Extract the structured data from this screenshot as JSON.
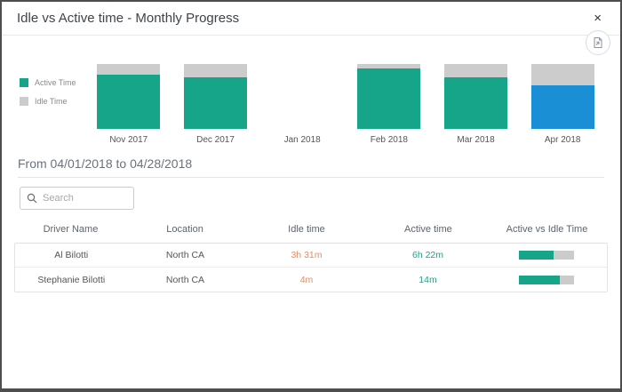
{
  "modal": {
    "title": "Idle vs Active time - Monthly Progress",
    "close_label": "×"
  },
  "toolbar": {
    "export_icon": "export-document-icon"
  },
  "colors": {
    "active_teal": "#17a589",
    "idle_gray": "#cccccc",
    "highlight_blue": "#1b8fd6",
    "idle_text_orange": "#e88b5f"
  },
  "legend": {
    "items": [
      {
        "label": "Active Time",
        "color": "#17a589"
      },
      {
        "label": "Idle Time",
        "color": "#cccccc"
      }
    ]
  },
  "chart_data": {
    "type": "bar",
    "stacked": true,
    "percent_stacked": true,
    "categories": [
      "Nov 2017",
      "Dec 2017",
      "Jan 2018",
      "Feb 2018",
      "Mar 2018",
      "Apr 2018"
    ],
    "series": [
      {
        "name": "Active Time",
        "color": "#17a589",
        "values": [
          83,
          80,
          null,
          93,
          80,
          67
        ]
      },
      {
        "name": "Idle Time",
        "color": "#cccccc",
        "values": [
          17,
          20,
          null,
          7,
          20,
          33
        ]
      }
    ],
    "highlight": {
      "category": "Apr 2018",
      "active_color": "#1b8fd6"
    },
    "title": "Idle vs Active time - Monthly Progress",
    "xlabel": "",
    "ylabel": "",
    "ylim": [
      0,
      100
    ],
    "grid": false,
    "legend_position": "left",
    "note": "Jan 2018 has no bar; Apr 2018 active segment is highlighted blue"
  },
  "period": {
    "label": "From 04/01/2018 to 04/28/2018"
  },
  "search": {
    "placeholder": "Search"
  },
  "table": {
    "columns": [
      "Driver Name",
      "Location",
      "Idle time",
      "Active time",
      "Active vs Idle Time"
    ],
    "rows": [
      {
        "driver": "Al Bilotti",
        "location": "North CA",
        "idle": "3h 31m",
        "active": "6h 22m",
        "active_pct": 64
      },
      {
        "driver": "Stephanie Bilotti",
        "location": "North CA",
        "idle": "4m",
        "active": "14m",
        "active_pct": 75
      }
    ]
  }
}
